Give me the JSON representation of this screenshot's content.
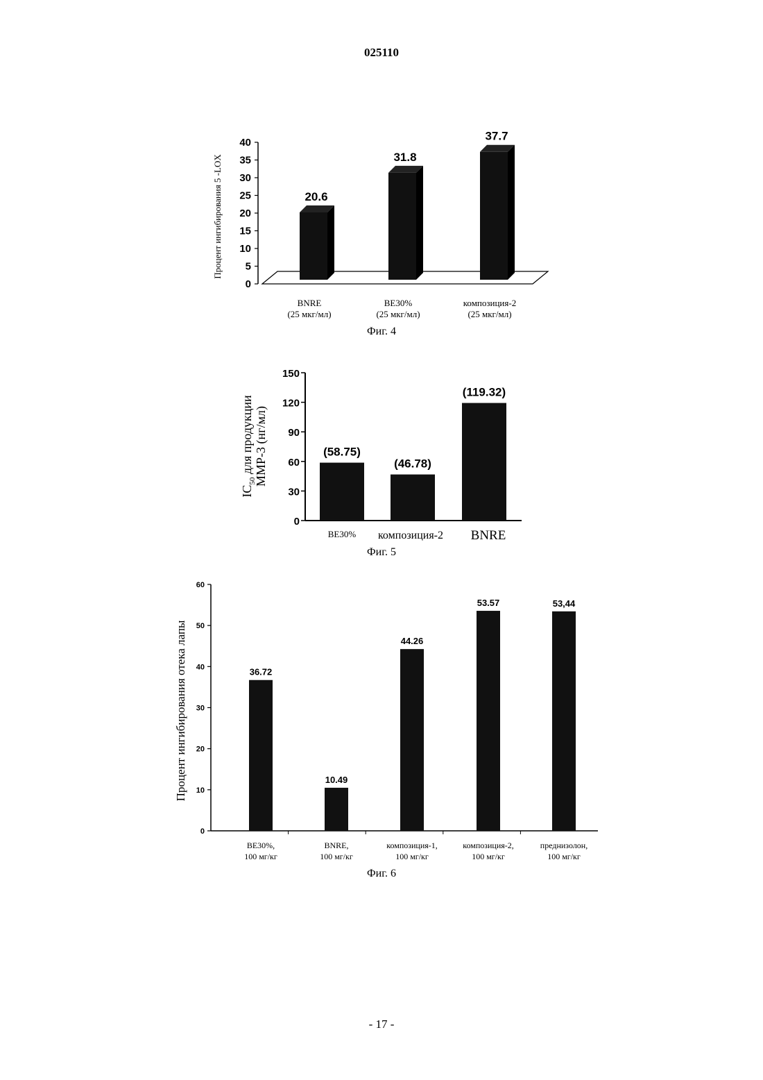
{
  "document": {
    "number": "025110",
    "page_footer": "- 17 -"
  },
  "chart_data": [
    {
      "type": "bar",
      "caption": "Фиг. 4",
      "ylabel": "Процент ингибирования 5 -LOX",
      "ylim": [
        0,
        40
      ],
      "yticks": [
        0,
        5,
        10,
        15,
        20,
        25,
        30,
        35,
        40
      ],
      "categories": [
        {
          "line1": "BNRE",
          "line2": "(25 мкг/мл)"
        },
        {
          "line1": "BE30%",
          "line2": "(25 мкг/мл)"
        },
        {
          "line1": "композиция-2",
          "line2": "(25 мкг/мл)"
        }
      ],
      "values": [
        20.6,
        31.8,
        37.7
      ],
      "value_labels": [
        "20.6",
        "31.8",
        "37.7"
      ],
      "style": "3d",
      "bar_color": "#111111"
    },
    {
      "type": "bar",
      "caption": "Фиг. 5",
      "ylabel_line1_main": "IC",
      "ylabel_line1_sub": "50",
      "ylabel_line1_rest": " для продукции",
      "ylabel_line2": "MMP-3 (нг/мл)",
      "ylim": [
        0,
        150
      ],
      "yticks": [
        0,
        30,
        60,
        90,
        120,
        150
      ],
      "categories": [
        "BE30%",
        "композиция-2",
        "BNRE"
      ],
      "values": [
        58.75,
        46.78,
        119.32
      ],
      "value_labels": [
        "(58.75)",
        "(46.78)",
        "(119.32)"
      ],
      "bar_color": "#111111"
    },
    {
      "type": "bar",
      "caption": "Фиг. 6",
      "ylabel": "Процент ингибирования отека лапы",
      "ylim": [
        0,
        60
      ],
      "yticks": [
        0,
        10,
        20,
        30,
        40,
        50,
        60
      ],
      "categories": [
        {
          "line1": "BE30%,",
          "line2": "100 мг/кг"
        },
        {
          "line1": "BNRE,",
          "line2": "100 мг/кг"
        },
        {
          "line1": "композиция-1,",
          "line2": "100 мг/кг"
        },
        {
          "line1": "композиция-2,",
          "line2": "100 мг/кг"
        },
        {
          "line1": "преднизолон,",
          "line2": "100 мг/кг"
        }
      ],
      "values": [
        36.72,
        10.49,
        44.26,
        53.57,
        53.44
      ],
      "value_labels": [
        "36.72",
        "10.49",
        "44.26",
        "53.57",
        "53,44"
      ],
      "bar_color": "#111111"
    }
  ]
}
